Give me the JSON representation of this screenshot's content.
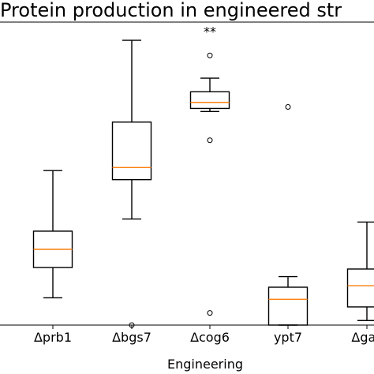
{
  "chart_data": {
    "type": "boxplot",
    "title": "Protein production in engineered str",
    "xlabel": "Engineering",
    "ylabel": "",
    "ylim": [
      0,
      100
    ],
    "grid": false,
    "categories": [
      "Δprb1",
      "Δbgs7",
      "Δcog6",
      "ypt7",
      "Δgas"
    ],
    "boxes": [
      {
        "category": "Δprb1",
        "whislo": 9,
        "q1": 19,
        "med": 25,
        "q3": 31,
        "whishi": 51,
        "fliers": []
      },
      {
        "category": "Δbgs7",
        "whislo": 35,
        "q1": 48,
        "med": 52,
        "q3": 67,
        "whishi": 94,
        "fliers": [
          0
        ]
      },
      {
        "category": "Δcog6",
        "whislo": 70.5,
        "q1": 71.5,
        "med": 73.5,
        "q3": 77,
        "whishi": 81.5,
        "fliers": [
          89,
          61,
          4
        ]
      },
      {
        "category": "ypt7",
        "whislo": 0,
        "q1": 0,
        "med": 8.5,
        "q3": 12.5,
        "whishi": 16,
        "fliers": [
          72
        ]
      },
      {
        "category": "Δgas",
        "whislo": 1.5,
        "q1": 6,
        "med": 13,
        "q3": 18.5,
        "whishi": 34,
        "fliers": []
      }
    ],
    "annotations": [
      {
        "text": "**",
        "category": "Δcog6",
        "y": 97
      }
    ],
    "colors": {
      "median": "#ff7f0e",
      "box": "#000000"
    }
  }
}
